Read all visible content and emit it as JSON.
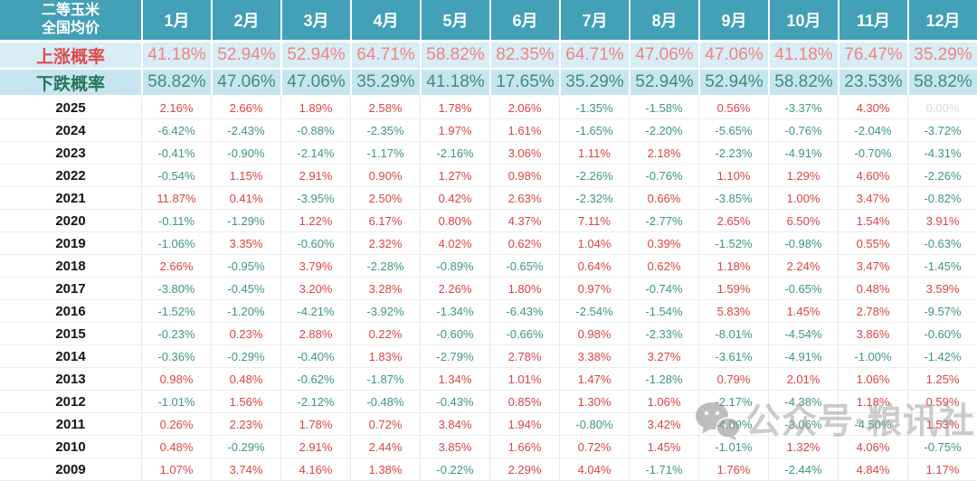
{
  "chart_data": {
    "type": "table",
    "title_line1": "二等玉米",
    "title_line2": "全国均价",
    "columns": [
      "1月",
      "2月",
      "3月",
      "4月",
      "5月",
      "6月",
      "7月",
      "8月",
      "9月",
      "10月",
      "11月",
      "12月"
    ],
    "rise_probability": {
      "label": "上涨概率",
      "values": [
        "41.18%",
        "52.94%",
        "52.94%",
        "64.71%",
        "58.82%",
        "82.35%",
        "64.71%",
        "47.06%",
        "47.06%",
        "41.18%",
        "76.47%",
        "35.29%"
      ]
    },
    "fall_probability": {
      "label": "下跌概率",
      "values": [
        "58.82%",
        "47.06%",
        "47.06%",
        "35.29%",
        "41.18%",
        "17.65%",
        "35.29%",
        "52.94%",
        "52.94%",
        "58.82%",
        "23.53%",
        "58.82%"
      ]
    },
    "rows": [
      {
        "year": "2025",
        "values": [
          "2.16%",
          "2.66%",
          "1.89%",
          "2.58%",
          "1.78%",
          "2.06%",
          "-1.35%",
          "-1.58%",
          "0.56%",
          "-3.37%",
          "4.30%",
          "0.00%"
        ]
      },
      {
        "year": "2024",
        "values": [
          "-6.42%",
          "-2.43%",
          "-0.88%",
          "-2.35%",
          "1.97%",
          "1.61%",
          "-1.65%",
          "-2.20%",
          "-5.65%",
          "-0.76%",
          "-2.04%",
          "-3.72%"
        ]
      },
      {
        "year": "2023",
        "values": [
          "-0.41%",
          "-0.90%",
          "-2.14%",
          "-1.17%",
          "-2.16%",
          "3.06%",
          "1.11%",
          "2.18%",
          "-2.23%",
          "-4.91%",
          "-0.70%",
          "-4.31%"
        ]
      },
      {
        "year": "2022",
        "values": [
          "-0.54%",
          "1.15%",
          "2.91%",
          "0.90%",
          "1.27%",
          "0.98%",
          "-2.26%",
          "-0.76%",
          "1.10%",
          "1.29%",
          "4.60%",
          "-2.26%"
        ]
      },
      {
        "year": "2021",
        "values": [
          "11.87%",
          "0.41%",
          "-3.95%",
          "2.50%",
          "0.42%",
          "2.63%",
          "-2.32%",
          "0.66%",
          "-3.85%",
          "1.00%",
          "3.47%",
          "-0.82%"
        ]
      },
      {
        "year": "2020",
        "values": [
          "-0.11%",
          "-1.29%",
          "1.22%",
          "6.17%",
          "0.80%",
          "4.37%",
          "7.11%",
          "-2.77%",
          "2.65%",
          "6.50%",
          "1.54%",
          "3.91%"
        ]
      },
      {
        "year": "2019",
        "values": [
          "-1.06%",
          "3.35%",
          "-0.60%",
          "2.32%",
          "4.02%",
          "0.62%",
          "1.04%",
          "0.39%",
          "-1.52%",
          "-0.98%",
          "0.55%",
          "-0.63%"
        ]
      },
      {
        "year": "2018",
        "values": [
          "2.66%",
          "-0.95%",
          "3.79%",
          "-2.28%",
          "-0.89%",
          "-0.65%",
          "0.64%",
          "0.62%",
          "1.18%",
          "2.24%",
          "3.47%",
          "-1.45%"
        ]
      },
      {
        "year": "2017",
        "values": [
          "-3.80%",
          "-0.45%",
          "3.20%",
          "3.28%",
          "2.26%",
          "1.80%",
          "0.97%",
          "-0.74%",
          "1.59%",
          "-0.65%",
          "0.48%",
          "3.59%"
        ]
      },
      {
        "year": "2016",
        "values": [
          "-1.52%",
          "-1.20%",
          "-4.21%",
          "-3.92%",
          "-1.34%",
          "-6.43%",
          "-2.54%",
          "-1.54%",
          "5.83%",
          "1.45%",
          "2.78%",
          "-9.57%"
        ]
      },
      {
        "year": "2015",
        "values": [
          "-0.23%",
          "0.23%",
          "2.88%",
          "0.22%",
          "-0.60%",
          "-0.66%",
          "0.98%",
          "-2.33%",
          "-8.01%",
          "-4.54%",
          "3.86%",
          "-0.60%"
        ]
      },
      {
        "year": "2014",
        "values": [
          "-0.36%",
          "-0.29%",
          "-0.40%",
          "1.83%",
          "-2.79%",
          "2.78%",
          "3.38%",
          "3.27%",
          "-3.61%",
          "-4.91%",
          "-1.00%",
          "-1.42%"
        ]
      },
      {
        "year": "2013",
        "values": [
          "0.98%",
          "0.48%",
          "-0.62%",
          "-1.87%",
          "1.34%",
          "1.01%",
          "1.47%",
          "-1.28%",
          "0.79%",
          "2.01%",
          "1.06%",
          "1.25%"
        ]
      },
      {
        "year": "2012",
        "values": [
          "-1.01%",
          "1.56%",
          "-2.12%",
          "-0.48%",
          "-0.43%",
          "0.85%",
          "1.30%",
          "1.06%",
          "-2.17%",
          "-4.38%",
          "1.18%",
          "0.59%"
        ]
      },
      {
        "year": "2011",
        "values": [
          "0.26%",
          "2.23%",
          "1.78%",
          "0.72%",
          "3.84%",
          "1.94%",
          "-0.80%",
          "3.42%",
          "-4.09%",
          "-3.06%",
          "-4.50%",
          "1.53%"
        ]
      },
      {
        "year": "2010",
        "values": [
          "0.48%",
          "-0.29%",
          "2.91%",
          "2.44%",
          "3.85%",
          "1.66%",
          "0.72%",
          "1.45%",
          "-1.01%",
          "1.32%",
          "4.06%",
          "-0.75%"
        ]
      },
      {
        "year": "2009",
        "values": [
          "1.07%",
          "3.74%",
          "4.16%",
          "1.38%",
          "-0.22%",
          "2.29%",
          "4.04%",
          "-1.71%",
          "1.76%",
          "-2.44%",
          "4.84%",
          "1.17%"
        ]
      }
    ],
    "colors": {
      "header_bg": "#42a0b7",
      "rise_row_bg": "#d8edf6",
      "fall_row_bg": "#c7e5f0",
      "positive": "#dd4444",
      "negative": "#3c9a73",
      "zero": "#dcdcdc"
    }
  },
  "watermark": {
    "text": "公众号·粮讯社"
  }
}
